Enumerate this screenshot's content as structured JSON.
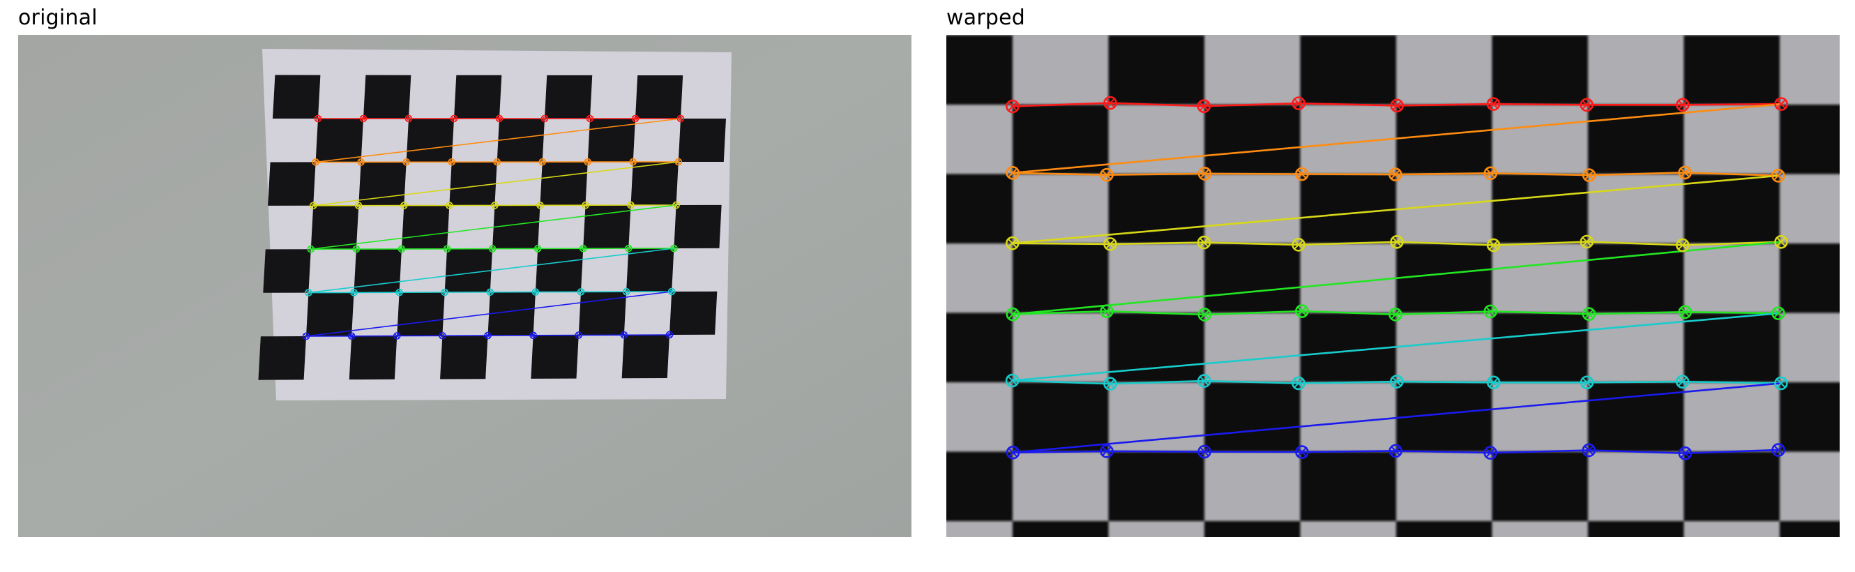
{
  "panels": {
    "original": {
      "title": "original"
    },
    "warped": {
      "title": "warped"
    }
  },
  "colors": {
    "wall": "#a5a9a6",
    "paper": "#d2d1da",
    "square_dark": "#141316",
    "warped_light": "#adadb2",
    "warped_dark": "#111111",
    "row_colors": [
      "#ff1a1a",
      "#ff8c10",
      "#d8d818",
      "#22e622",
      "#18cccc",
      "#1a1aee"
    ]
  },
  "grid": {
    "rows": 6,
    "cols": 9
  }
}
